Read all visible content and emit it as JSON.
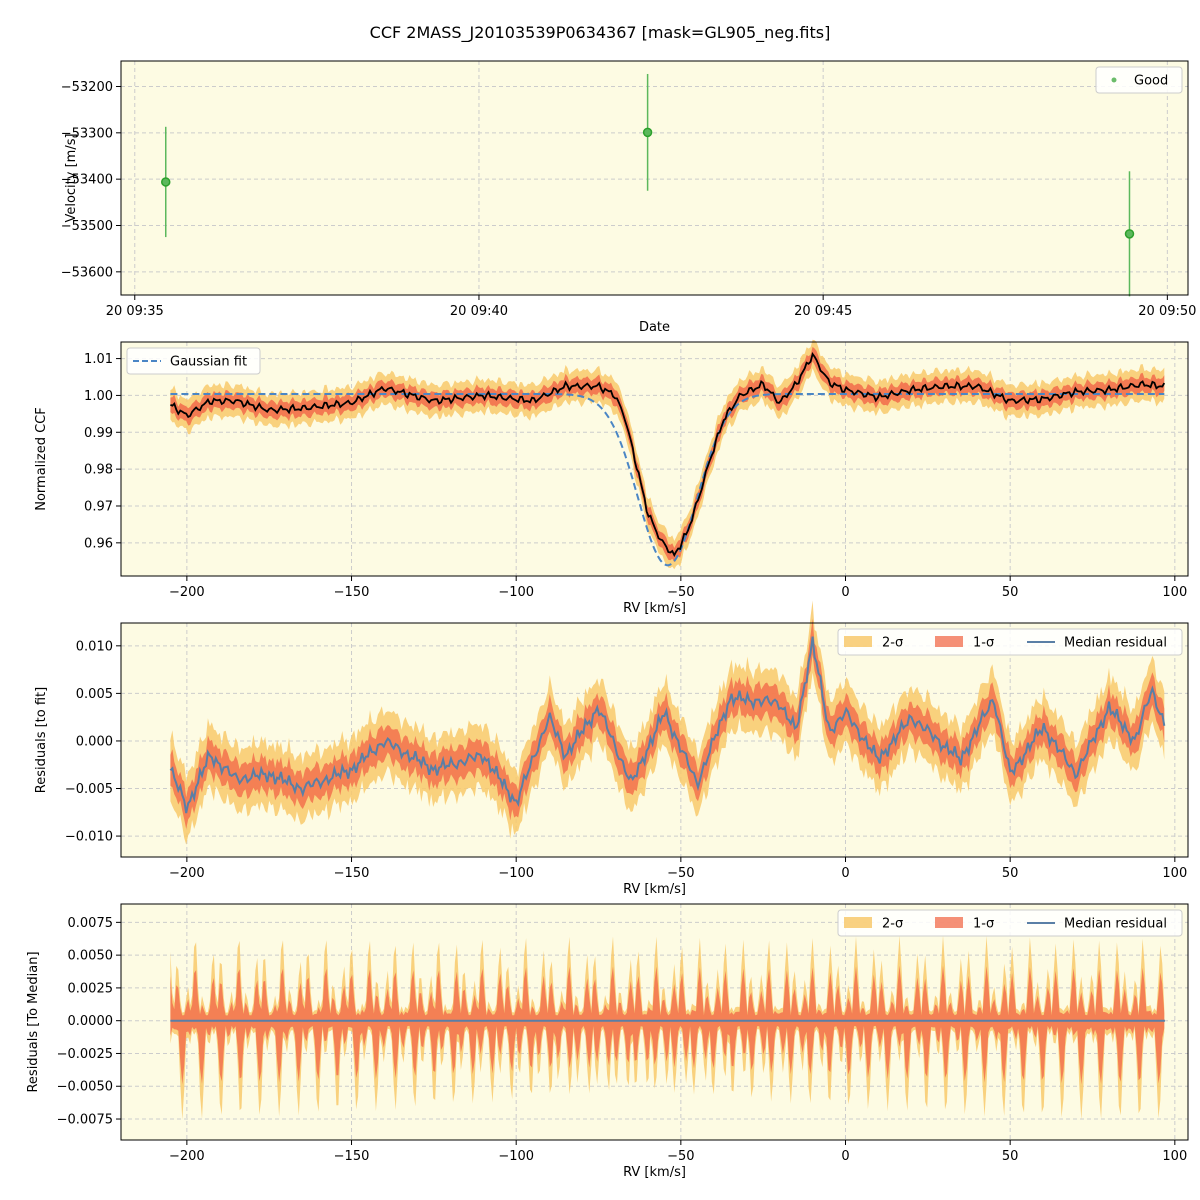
{
  "colors": {
    "panel_bg": "#fdfbe3",
    "grid": "#cccccc",
    "good": "#2ca02c",
    "good_errbar": "#5cb85c",
    "fit": "#4a86c5",
    "ccf": "#000000",
    "band2": "#f8c96b",
    "band1": "#f26b4a",
    "median": "#5a7fa6"
  },
  "chart_data": [
    {
      "type": "scatter",
      "title": "CCF 2MASS_J20103539P0634367 [mask=GL905_neg.fits]",
      "xlabel": "Date",
      "ylabel": "Velocity [m/s]",
      "xlim": [
        -0.2,
        15.3
      ],
      "ylim": [
        -53650,
        -53145
      ],
      "x_ticks": [
        0,
        5,
        10,
        15
      ],
      "x_tick_labels": [
        "20 09:35",
        "20 09:40",
        "20 09:45",
        "20 09:50"
      ],
      "y_ticks": [
        -53200,
        -53300,
        -53400,
        -53500,
        -53600
      ],
      "y_tick_labels": [
        "−53200",
        "−53300",
        "−53400",
        "−53500",
        "−53600"
      ],
      "legend": [
        "Good"
      ],
      "series": [
        {
          "name": "Good",
          "x_minutes": [
            0.45,
            7.45,
            14.45
          ],
          "values": [
            -53406,
            -53299,
            -53518
          ],
          "errors": [
            119,
            126,
            135
          ]
        }
      ]
    },
    {
      "type": "line",
      "xlabel": "RV [km/s]",
      "ylabel": "Normalized CCF",
      "xlim": [
        -220,
        104
      ],
      "ylim": [
        0.951,
        1.0145
      ],
      "x_ticks": [
        -200,
        -150,
        -100,
        -50,
        0,
        50,
        100
      ],
      "x_tick_labels": [
        "−200",
        "−150",
        "−100",
        "−50",
        "0",
        "50",
        "100"
      ],
      "y_ticks": [
        0.96,
        0.97,
        0.98,
        0.99,
        1.0,
        1.01
      ],
      "y_tick_labels": [
        "0.96",
        "0.97",
        "0.98",
        "0.99",
        "1.00",
        "1.01"
      ],
      "legend": [
        "Gaussian fit"
      ],
      "gaussian_fit": {
        "center": -54,
        "sigma": 9,
        "depth": 0.0465,
        "baseline": 1.0004
      },
      "ccf_profile": [
        {
          "rv": -205,
          "value": 0.9975
        },
        {
          "rv": -200,
          "value": 0.9945
        },
        {
          "rv": -193,
          "value": 0.9985
        },
        {
          "rv": -185,
          "value": 0.9985
        },
        {
          "rv": -175,
          "value": 0.996
        },
        {
          "rv": -165,
          "value": 0.9965
        },
        {
          "rv": -150,
          "value": 0.998
        },
        {
          "rv": -140,
          "value": 1.002
        },
        {
          "rv": -125,
          "value": 0.9985
        },
        {
          "rv": -110,
          "value": 1.0
        },
        {
          "rv": -95,
          "value": 0.9985
        },
        {
          "rv": -85,
          "value": 1.0025
        },
        {
          "rv": -75,
          "value": 1.0025
        },
        {
          "rv": -70,
          "value": 1.0
        },
        {
          "rv": -67,
          "value": 0.994
        },
        {
          "rv": -64,
          "value": 0.983
        },
        {
          "rv": -60,
          "value": 0.968
        },
        {
          "rv": -56,
          "value": 0.9605
        },
        {
          "rv": -52,
          "value": 0.9565
        },
        {
          "rv": -48,
          "value": 0.963
        },
        {
          "rv": -45,
          "value": 0.971
        },
        {
          "rv": -41,
          "value": 0.983
        },
        {
          "rv": -37,
          "value": 0.9935
        },
        {
          "rv": -32,
          "value": 1.0
        },
        {
          "rv": -25,
          "value": 1.003
        },
        {
          "rv": -20,
          "value": 0.998
        },
        {
          "rv": -15,
          "value": 1.003
        },
        {
          "rv": -10,
          "value": 1.011
        },
        {
          "rv": -5,
          "value": 1.0035
        },
        {
          "rv": 0,
          "value": 1.0015
        },
        {
          "rv": 10,
          "value": 0.9995
        },
        {
          "rv": 20,
          "value": 1.0015
        },
        {
          "rv": 30,
          "value": 1.0025
        },
        {
          "rv": 40,
          "value": 1.0025
        },
        {
          "rv": 50,
          "value": 0.9985
        },
        {
          "rv": 60,
          "value": 0.999
        },
        {
          "rv": 70,
          "value": 1.001
        },
        {
          "rv": 80,
          "value": 1.0015
        },
        {
          "rv": 90,
          "value": 1.003
        },
        {
          "rv": 97,
          "value": 1.0025
        }
      ]
    },
    {
      "type": "area",
      "xlabel": "RV [km/s]",
      "ylabel": "Residuals [to fit]",
      "xlim": [
        -220,
        104
      ],
      "ylim": [
        -0.0122,
        0.0124
      ],
      "x_ticks": [
        -200,
        -150,
        -100,
        -50,
        0,
        50,
        100
      ],
      "x_tick_labels": [
        "−200",
        "−150",
        "−100",
        "−50",
        "0",
        "50",
        "100"
      ],
      "y_ticks": [
        -0.01,
        -0.005,
        0.0,
        0.005,
        0.01
      ],
      "y_tick_labels": [
        "−0.010",
        "−0.005",
        "0.000",
        "0.005",
        "0.010"
      ],
      "legend": [
        "2-σ",
        "1-σ",
        "Median residual"
      ],
      "median_residual": [
        {
          "rv": -205,
          "value": -0.003
        },
        {
          "rv": -200,
          "value": -0.007
        },
        {
          "rv": -193,
          "value": -0.0015
        },
        {
          "rv": -185,
          "value": -0.004
        },
        {
          "rv": -175,
          "value": -0.0035
        },
        {
          "rv": -165,
          "value": -0.005
        },
        {
          "rv": -150,
          "value": -0.003
        },
        {
          "rv": -140,
          "value": 0.0
        },
        {
          "rv": -125,
          "value": -0.003
        },
        {
          "rv": -110,
          "value": -0.0015
        },
        {
          "rv": -100,
          "value": -0.0065
        },
        {
          "rv": -90,
          "value": 0.0025
        },
        {
          "rv": -85,
          "value": -0.0015
        },
        {
          "rv": -75,
          "value": 0.0035
        },
        {
          "rv": -65,
          "value": -0.0045
        },
        {
          "rv": -55,
          "value": 0.003
        },
        {
          "rv": -45,
          "value": -0.0045
        },
        {
          "rv": -35,
          "value": 0.0045
        },
        {
          "rv": -20,
          "value": 0.004
        },
        {
          "rv": -15,
          "value": 0.001
        },
        {
          "rv": -10,
          "value": 0.0105
        },
        {
          "rv": -5,
          "value": 0.001
        },
        {
          "rv": 0,
          "value": 0.003
        },
        {
          "rv": 10,
          "value": -0.002
        },
        {
          "rv": 20,
          "value": 0.0025
        },
        {
          "rv": 35,
          "value": -0.002
        },
        {
          "rv": 45,
          "value": 0.0045
        },
        {
          "rv": 50,
          "value": -0.0035
        },
        {
          "rv": 60,
          "value": 0.0015
        },
        {
          "rv": 70,
          "value": -0.0035
        },
        {
          "rv": 80,
          "value": 0.0035
        },
        {
          "rv": 88,
          "value": 0.0
        },
        {
          "rv": 93,
          "value": 0.0055
        },
        {
          "rv": 97,
          "value": 0.0015
        }
      ]
    },
    {
      "type": "area",
      "xlabel": "RV [km/s]",
      "ylabel": "Residuals [To Median]",
      "xlim": [
        -220,
        104
      ],
      "ylim": [
        -0.0091,
        0.0089
      ],
      "x_ticks": [
        -200,
        -150,
        -100,
        -50,
        0,
        50,
        100
      ],
      "x_tick_labels": [
        "−200",
        "−150",
        "−100",
        "−50",
        "0",
        "50",
        "100"
      ],
      "y_ticks": [
        -0.0075,
        -0.005,
        -0.0025,
        0.0,
        0.0025,
        0.005,
        0.0075
      ],
      "y_tick_labels": [
        "−0.0075",
        "−0.0050",
        "−0.0025",
        "0.0000",
        "0.0025",
        "0.0050",
        "0.0075"
      ],
      "legend": [
        "2-σ",
        "1-σ",
        "Median residual"
      ],
      "median_residual": [
        {
          "rv": -205,
          "value": 0.0
        },
        {
          "rv": 97,
          "value": 0.0
        }
      ]
    }
  ]
}
